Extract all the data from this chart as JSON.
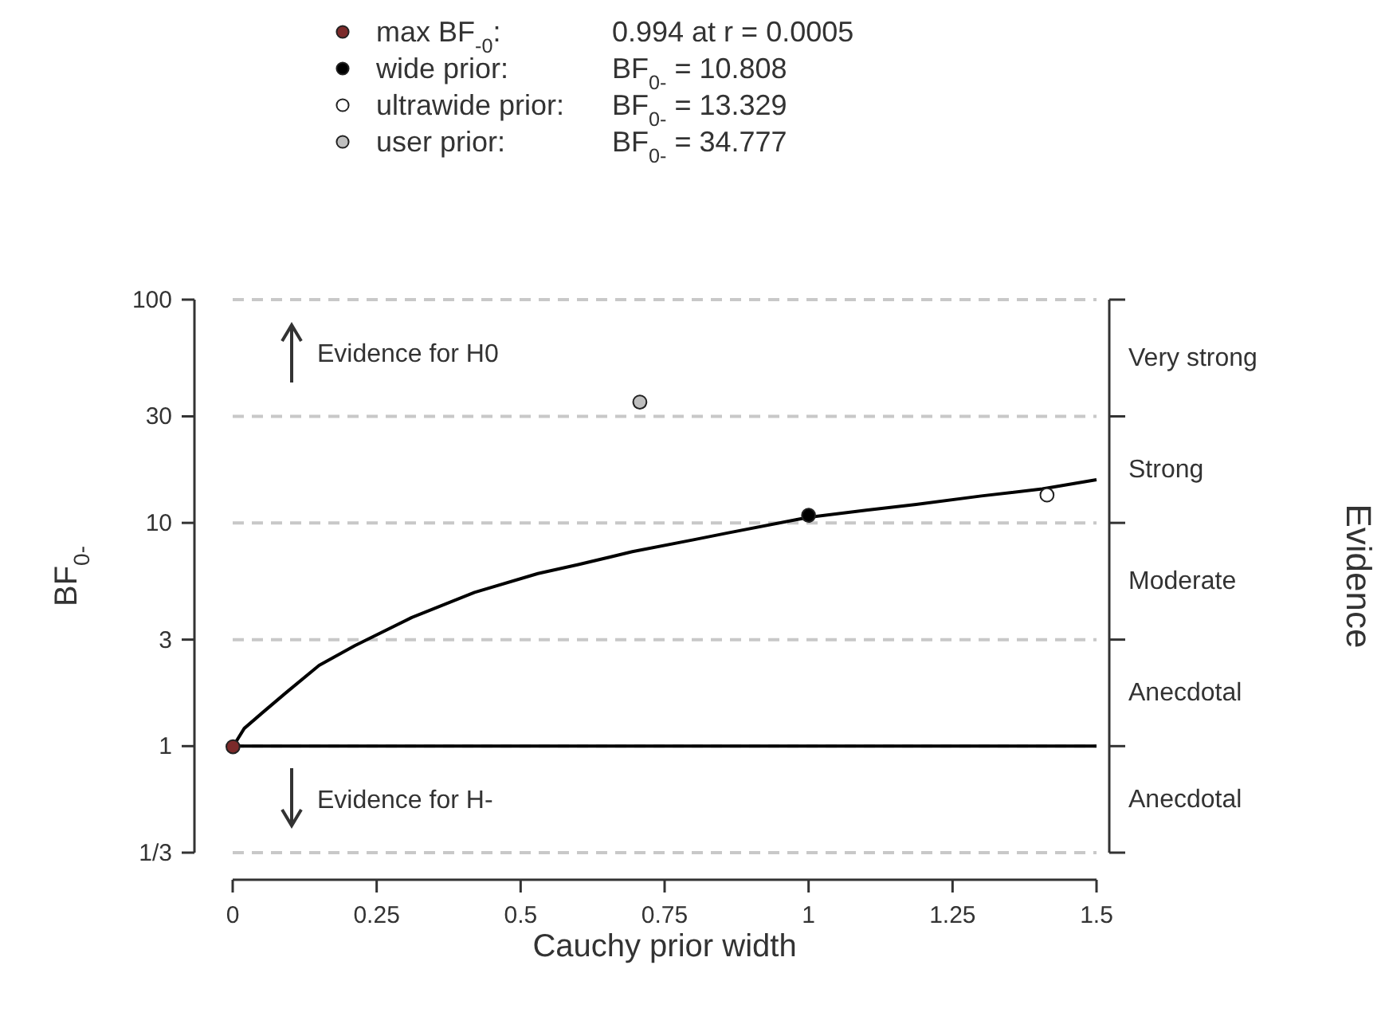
{
  "chart_data": {
    "type": "line",
    "xlabel": "Cauchy prior width",
    "ylabel": "BF$_{0-}$",
    "log": "y",
    "grid": "y",
    "legend": "top",
    "xlim": [
      0,
      1.5
    ],
    "xticks": [
      0,
      0.25,
      0.5,
      0.75,
      1,
      1.25,
      1.5
    ],
    "ylim": [
      0.3333,
      100
    ],
    "yticks": [
      100,
      30,
      10,
      3,
      1,
      {
        "value": 0.3333,
        "label": "1/3"
      }
    ],
    "ref_lines": [
      {
        "axis": "y",
        "value": 1,
        "color": "#000000",
        "line_style": "solid"
      }
    ],
    "annotations": [
      "0.994 at r = 0.0005",
      "BF$_{0-}$ = 10.808",
      "BF$_{0-}$ = 13.329",
      "BF$_{0-}$ = 34.777",
      "Evidence for H0",
      "Evidence for H-",
      "Very strong",
      "Strong",
      "Moderate",
      "Anecdotal",
      "Anecdotal",
      "Evidence"
    ],
    "series": [
      {
        "type": "line",
        "color": "#000000",
        "marker": "none",
        "x": [
          0.0005,
          0.02,
          0.05,
          0.092,
          0.15,
          0.212,
          0.311,
          0.42,
          0.53,
          0.6,
          0.694,
          0.8,
          0.859,
          1.001,
          1.1,
          1.187,
          1.3,
          1.406,
          1.5
        ],
        "values": [
          0.994,
          1.2,
          1.4,
          1.73,
          2.3,
          2.82,
          3.77,
          4.88,
          5.93,
          6.5,
          7.43,
          8.4,
          9.01,
          10.6,
          11.4,
          12.1,
          13.2,
          14.2,
          15.6
        ]
      },
      {
        "type": "scatter",
        "name": "max BF$_{-0}$:",
        "color": "#7b2a2a",
        "marker": "circle",
        "x": [
          0.0005
        ],
        "values": [
          0.994
        ]
      },
      {
        "type": "scatter",
        "name": "wide prior:",
        "color": "#000000",
        "marker": "circle",
        "x": [
          1
        ],
        "values": [
          10.808
        ]
      },
      {
        "type": "scatter",
        "name": "ultrawide prior:",
        "color": "#ffffff",
        "marker": "circle",
        "x": [
          1.414
        ],
        "values": [
          13.329
        ]
      },
      {
        "type": "scatter",
        "name": "user prior:",
        "color": "#bfbfbf",
        "marker": "circle",
        "x": [
          0.707
        ],
        "values": [
          34.777
        ]
      }
    ]
  }
}
